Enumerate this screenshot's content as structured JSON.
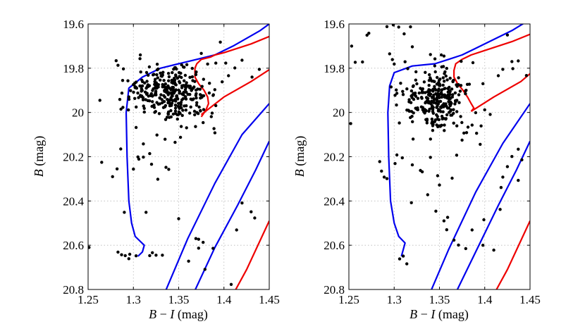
{
  "chart_data": [
    {
      "type": "scatter",
      "panel": "left",
      "xlabel": "B − I (mag)",
      "xlabel_parts": [
        "B",
        " − ",
        "I",
        " (mag)"
      ],
      "ylabel": "B (mag)",
      "ylabel_parts": [
        "B",
        " (mag)"
      ],
      "xlim": [
        1.25,
        1.45
      ],
      "ylim": [
        20.8,
        19.6
      ],
      "y_inverted": true,
      "grid": true,
      "xticks": [
        "1.25",
        "1.3",
        "1.35",
        "1.4",
        "1.45"
      ],
      "yticks": [
        "19.6",
        "19.8",
        "20",
        "20.2",
        "20.4",
        "20.6",
        "20.8"
      ],
      "series": [
        {
          "name": "blue isochrone",
          "color": "#0000ee",
          "kind": "line",
          "x": [
            1.46,
            1.44,
            1.41,
            1.39,
            1.37,
            1.35,
            1.33,
            1.31,
            1.295,
            1.292,
            1.293,
            1.295,
            1.298,
            1.302,
            1.307,
            1.312,
            1.31,
            1.305
          ],
          "y": [
            19.57,
            19.63,
            19.7,
            19.74,
            19.76,
            19.78,
            19.8,
            19.84,
            19.89,
            20.0,
            20.2,
            20.4,
            20.5,
            20.56,
            20.58,
            20.6,
            20.63,
            20.65
          ]
        },
        {
          "name": "red isochrone upper",
          "color": "#ee0000",
          "kind": "line",
          "x": [
            1.46,
            1.43,
            1.4,
            1.39,
            1.385,
            1.38,
            1.375,
            1.37,
            1.368,
            1.368,
            1.372,
            1.378,
            1.382,
            1.383,
            1.38,
            1.375
          ],
          "y": [
            19.64,
            19.69,
            19.73,
            19.74,
            19.75,
            19.755,
            19.76,
            19.78,
            19.8,
            19.84,
            19.87,
            19.9,
            19.93,
            19.96,
            19.99,
            20.02
          ]
        },
        {
          "name": "red isochrone lower",
          "color": "#ee0000",
          "kind": "line",
          "x": [
            1.375,
            1.4,
            1.43,
            1.46
          ],
          "y": [
            20.01,
            19.93,
            19.86,
            19.78
          ]
        },
        {
          "name": "blue lower line 1",
          "color": "#0000ee",
          "kind": "line",
          "x": [
            1.33,
            1.36,
            1.39,
            1.42,
            1.45
          ],
          "y": [
            20.86,
            20.57,
            20.32,
            20.1,
            19.96
          ]
        },
        {
          "name": "blue lower line 2",
          "color": "#0000ee",
          "kind": "line",
          "x": [
            1.365,
            1.39,
            1.415,
            1.435,
            1.45
          ],
          "y": [
            20.83,
            20.61,
            20.42,
            20.26,
            20.13
          ]
        },
        {
          "name": "red lower line",
          "color": "#ee0000",
          "kind": "line",
          "x": [
            1.405,
            1.425,
            1.45
          ],
          "y": [
            20.86,
            20.71,
            20.49
          ]
        },
        {
          "name": "stars",
          "color": "#000000",
          "kind": "points",
          "points": [
            [
              1.263,
              19.945
            ],
            [
              1.265,
              20.225
            ],
            [
              1.277,
              20.29
            ],
            [
              1.282,
              20.255
            ],
            [
              1.286,
              20.165
            ],
            [
              1.281,
              19.766
            ],
            [
              1.283,
              19.787
            ],
            [
              1.289,
              19.803
            ],
            [
              1.294,
              19.857
            ],
            [
              1.3,
              19.874
            ],
            [
              1.303,
              19.863
            ],
            [
              1.309,
              19.893
            ],
            [
              1.31,
              19.88
            ],
            [
              1.303,
              20.068
            ],
            [
              1.306,
              20.211
            ],
            [
              1.32,
              20.234
            ],
            [
              1.327,
              20.302
            ],
            [
              1.336,
              20.248
            ],
            [
              1.339,
              20.257
            ],
            [
              1.283,
              20.631
            ],
            [
              1.287,
              20.643
            ],
            [
              1.291,
              20.647
            ],
            [
              1.295,
              20.661
            ],
            [
              1.296,
              20.641
            ],
            [
              1.303,
              20.648
            ],
            [
              1.318,
              20.647
            ],
            [
              1.321,
              20.634
            ],
            [
              1.325,
              20.645
            ],
            [
              1.332,
              20.645
            ],
            [
              1.361,
              20.672
            ],
            [
              1.369,
              20.57
            ],
            [
              1.372,
              20.613
            ],
            [
              1.377,
              20.587
            ],
            [
              1.379,
              20.709
            ],
            [
              1.388,
              20.614
            ],
            [
              1.408,
              20.777
            ],
            [
              1.43,
              20.449
            ],
            [
              1.434,
              20.477
            ],
            [
              1.414,
              20.531
            ],
            [
              1.42,
              20.409
            ],
            [
              1.251,
              20.61
            ],
            [
              1.29,
              20.451
            ],
            [
              1.314,
              20.451
            ],
            [
              1.35,
              20.48
            ],
            [
              1.372,
              20.573
            ],
            [
              1.318,
              20.186
            ],
            [
              1.311,
              20.142
            ],
            [
              1.311,
              20.202
            ],
            [
              1.305,
              20.201
            ],
            [
              1.3,
              20.256
            ],
            [
              1.412,
              19.799
            ],
            [
              1.42,
              19.764
            ],
            [
              1.431,
              19.84
            ],
            [
              1.439,
              19.805
            ],
            [
              1.396,
              19.682
            ],
            [
              1.391,
              19.777
            ],
            [
              1.405,
              19.834
            ],
            [
              1.402,
              19.777
            ],
            [
              1.382,
              19.781
            ],
            [
              1.375,
              19.733
            ],
            [
              1.359,
              19.784
            ],
            [
              1.365,
              19.801
            ],
            [
              1.369,
              19.829
            ],
            [
              1.367,
              19.885
            ],
            [
              1.371,
              19.894
            ],
            [
              1.374,
              19.935
            ],
            [
              1.386,
              20.019
            ],
            [
              1.384,
              19.868
            ],
            [
              1.388,
              19.923
            ],
            [
              1.391,
              19.969
            ],
            [
              1.387,
              20.003
            ],
            [
              1.389,
              20.073
            ],
            [
              1.39,
              20.092
            ],
            [
              1.377,
              20.046
            ],
            [
              1.352,
              20.112
            ],
            [
              1.346,
              20.135
            ],
            [
              1.326,
              20.102
            ],
            [
              1.335,
              20.121
            ]
          ],
          "cluster": {
            "x_center": 1.34,
            "x_spread": 0.038,
            "y_center": 19.91,
            "y_spread": 0.12,
            "count": 300
          }
        }
      ]
    },
    {
      "type": "scatter",
      "panel": "right",
      "xlabel": "B − I (mag)",
      "xlabel_parts": [
        "B",
        " − ",
        "I",
        " (mag)"
      ],
      "ylabel": "B (mag)",
      "ylabel_parts": [
        "B",
        " (mag)"
      ],
      "xlim": [
        1.25,
        1.45
      ],
      "ylim": [
        20.8,
        19.6
      ],
      "y_inverted": true,
      "grid": true,
      "xticks": [
        "1.25",
        "1.3",
        "1.35",
        "1.4",
        "1.45"
      ],
      "yticks": [
        "19.6",
        "19.8",
        "20",
        "20.2",
        "20.4",
        "20.6",
        "20.8"
      ],
      "series": [
        {
          "name": "blue isochrone",
          "color": "#0000ee",
          "kind": "line",
          "x": [
            1.45,
            1.43,
            1.405,
            1.39,
            1.375,
            1.36,
            1.345,
            1.32,
            1.3,
            1.295,
            1.293,
            1.294,
            1.296,
            1.3,
            1.305,
            1.312,
            1.31,
            1.308
          ],
          "y": [
            19.58,
            19.63,
            19.68,
            19.71,
            19.74,
            19.76,
            19.78,
            19.79,
            19.82,
            19.88,
            20.0,
            20.2,
            20.4,
            20.5,
            20.56,
            20.59,
            20.62,
            20.65
          ]
        },
        {
          "name": "red isochrone upper",
          "color": "#ee0000",
          "kind": "line",
          "x": [
            1.46,
            1.43,
            1.4,
            1.385,
            1.375,
            1.368,
            1.366,
            1.366,
            1.37,
            1.376,
            1.381,
            1.385,
            1.388,
            1.385
          ],
          "y": [
            19.63,
            19.68,
            19.72,
            19.74,
            19.76,
            19.78,
            19.81,
            19.84,
            19.87,
            19.9,
            19.93,
            19.96,
            19.98,
            19.995
          ]
        },
        {
          "name": "red isochrone lower",
          "color": "#ee0000",
          "kind": "line",
          "x": [
            1.385,
            1.41,
            1.44,
            1.46
          ],
          "y": [
            19.995,
            19.93,
            19.86,
            19.79
          ]
        },
        {
          "name": "blue lower line 1",
          "color": "#0000ee",
          "kind": "line",
          "x": [
            1.335,
            1.36,
            1.39,
            1.42,
            1.45
          ],
          "y": [
            20.86,
            20.62,
            20.36,
            20.14,
            19.96
          ]
        },
        {
          "name": "blue lower line 2",
          "color": "#0000ee",
          "kind": "line",
          "x": [
            1.365,
            1.39,
            1.415,
            1.435,
            1.45
          ],
          "y": [
            20.84,
            20.63,
            20.42,
            20.26,
            20.13
          ]
        },
        {
          "name": "red lower line",
          "color": "#ee0000",
          "kind": "line",
          "x": [
            1.405,
            1.425,
            1.45
          ],
          "y": [
            20.86,
            20.71,
            20.49
          ]
        },
        {
          "name": "stars",
          "color": "#000000",
          "kind": "points",
          "points": [
            [
              1.253,
              19.7
            ],
            [
              1.257,
              19.773
            ],
            [
              1.265,
              19.772
            ],
            [
              1.272,
              19.642
            ],
            [
              1.27,
              19.651
            ],
            [
              1.292,
              19.612
            ],
            [
              1.299,
              19.604
            ],
            [
              1.305,
              19.614
            ],
            [
              1.311,
              19.645
            ],
            [
              1.318,
              19.613
            ],
            [
              1.295,
              19.735
            ],
            [
              1.298,
              19.761
            ],
            [
              1.3,
              19.781
            ],
            [
              1.312,
              19.771
            ],
            [
              1.315,
              19.802
            ],
            [
              1.32,
              19.703
            ],
            [
              1.252,
              20.05
            ],
            [
              1.284,
              20.222
            ],
            [
              1.286,
              20.265
            ],
            [
              1.289,
              20.292
            ],
            [
              1.292,
              20.299
            ],
            [
              1.301,
              20.231
            ],
            [
              1.303,
              20.192
            ],
            [
              1.309,
              20.205
            ],
            [
              1.32,
              20.237
            ],
            [
              1.329,
              20.262
            ],
            [
              1.331,
              20.268
            ],
            [
              1.34,
              20.203
            ],
            [
              1.348,
              20.286
            ],
            [
              1.35,
              20.328
            ],
            [
              1.364,
              20.297
            ],
            [
              1.319,
              20.408
            ],
            [
              1.337,
              20.372
            ],
            [
              1.346,
              20.446
            ],
            [
              1.359,
              20.474
            ],
            [
              1.355,
              20.49
            ],
            [
              1.358,
              20.53
            ],
            [
              1.366,
              20.577
            ],
            [
              1.371,
              20.599
            ],
            [
              1.379,
              20.615
            ],
            [
              1.398,
              20.6
            ],
            [
              1.41,
              20.622
            ],
            [
              1.314,
              20.684
            ],
            [
              1.306,
              20.662
            ],
            [
              1.31,
              20.649
            ],
            [
              1.386,
              20.531
            ],
            [
              1.399,
              20.485
            ],
            [
              1.417,
              20.438
            ],
            [
              1.418,
              20.339
            ],
            [
              1.42,
              20.292
            ],
            [
              1.43,
              20.199
            ],
            [
              1.437,
              20.166
            ],
            [
              1.441,
              20.214
            ],
            [
              1.425,
              20.245
            ],
            [
              1.437,
              20.307
            ],
            [
              1.398,
              19.87
            ],
            [
              1.415,
              19.834
            ],
            [
              1.42,
              19.805
            ],
            [
              1.43,
              19.77
            ],
            [
              1.446,
              19.833
            ],
            [
              1.425,
              19.65
            ],
            [
              1.437,
              19.767
            ],
            [
              1.431,
              19.802
            ],
            [
              1.387,
              19.775
            ],
            [
              1.374,
              19.769
            ],
            [
              1.358,
              19.801
            ],
            [
              1.355,
              19.745
            ],
            [
              1.352,
              19.74
            ],
            [
              1.345,
              19.758
            ],
            [
              1.34,
              19.738
            ],
            [
              1.391,
              20.094
            ],
            [
              1.395,
              20.144
            ],
            [
              1.375,
              20.125
            ],
            [
              1.369,
              20.193
            ],
            [
              1.38,
              20.091
            ],
            [
              1.377,
              20.093
            ],
            [
              1.39,
              20.001
            ],
            [
              1.406,
              20.009
            ],
            [
              1.396,
              20.061
            ],
            [
              1.4,
              19.988
            ]
          ],
          "cluster": {
            "x_center": 1.345,
            "x_spread": 0.034,
            "y_center": 19.94,
            "y_spread": 0.11,
            "count": 280
          }
        }
      ]
    }
  ]
}
